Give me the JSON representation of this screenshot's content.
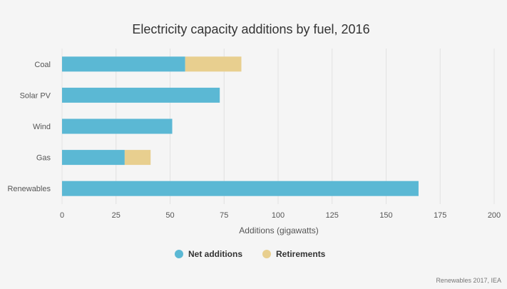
{
  "chart_data": {
    "type": "bar",
    "orientation": "horizontal",
    "stacked": true,
    "title": "Electricity capacity additions by fuel, 2016",
    "categories": [
      "Coal",
      "Solar PV",
      "Wind",
      "Gas",
      "Renewables"
    ],
    "series": [
      {
        "name": "Net additions",
        "values": [
          57,
          73,
          51,
          29,
          165
        ],
        "color": "#5bb8d4"
      },
      {
        "name": "Retirements",
        "values": [
          26,
          0,
          0,
          12,
          0
        ],
        "color": "#e8cf8f"
      }
    ],
    "xlabel": "Additions (gigawatts)",
    "ylabel": "",
    "xlim": [
      0,
      200
    ],
    "xticks": [
      0,
      25,
      50,
      75,
      100,
      125,
      150,
      175,
      200
    ],
    "grid": true,
    "legend": "bottom-center",
    "source": "Renewables 2017, IEA"
  }
}
